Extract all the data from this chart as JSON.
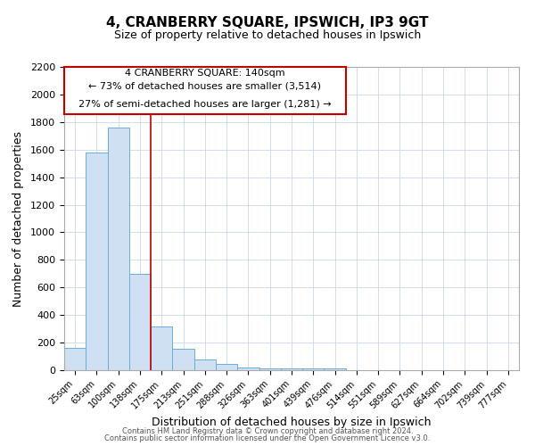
{
  "title": "4, CRANBERRY SQUARE, IPSWICH, IP3 9GT",
  "subtitle": "Size of property relative to detached houses in Ipswich",
  "xlabel": "Distribution of detached houses by size in Ipswich",
  "ylabel": "Number of detached properties",
  "bar_labels": [
    "25sqm",
    "63sqm",
    "100sqm",
    "138sqm",
    "175sqm",
    "213sqm",
    "251sqm",
    "288sqm",
    "326sqm",
    "363sqm",
    "401sqm",
    "439sqm",
    "476sqm",
    "514sqm",
    "551sqm",
    "589sqm",
    "627sqm",
    "664sqm",
    "702sqm",
    "739sqm",
    "777sqm"
  ],
  "bar_values": [
    160,
    1580,
    1760,
    700,
    315,
    155,
    80,
    45,
    20,
    15,
    10,
    10,
    10,
    0,
    0,
    0,
    0,
    0,
    0,
    0,
    0
  ],
  "bar_color": "#cfe0f2",
  "bar_edge_color": "#6aadd5",
  "ylim": [
    0,
    2200
  ],
  "yticks": [
    0,
    200,
    400,
    600,
    800,
    1000,
    1200,
    1400,
    1600,
    1800,
    2000,
    2200
  ],
  "property_line_color": "#c00000",
  "annotation_line1": "4 CRANBERRY SQUARE: 140sqm",
  "annotation_line2": "← 73% of detached houses are smaller (3,514)",
  "annotation_line3": "27% of semi-detached houses are larger (1,281) →",
  "footer_line1": "Contains HM Land Registry data © Crown copyright and database right 2024.",
  "footer_line2": "Contains public sector information licensed under the Open Government Licence v3.0.",
  "background_color": "#ffffff",
  "grid_color": "#c8d8ec"
}
